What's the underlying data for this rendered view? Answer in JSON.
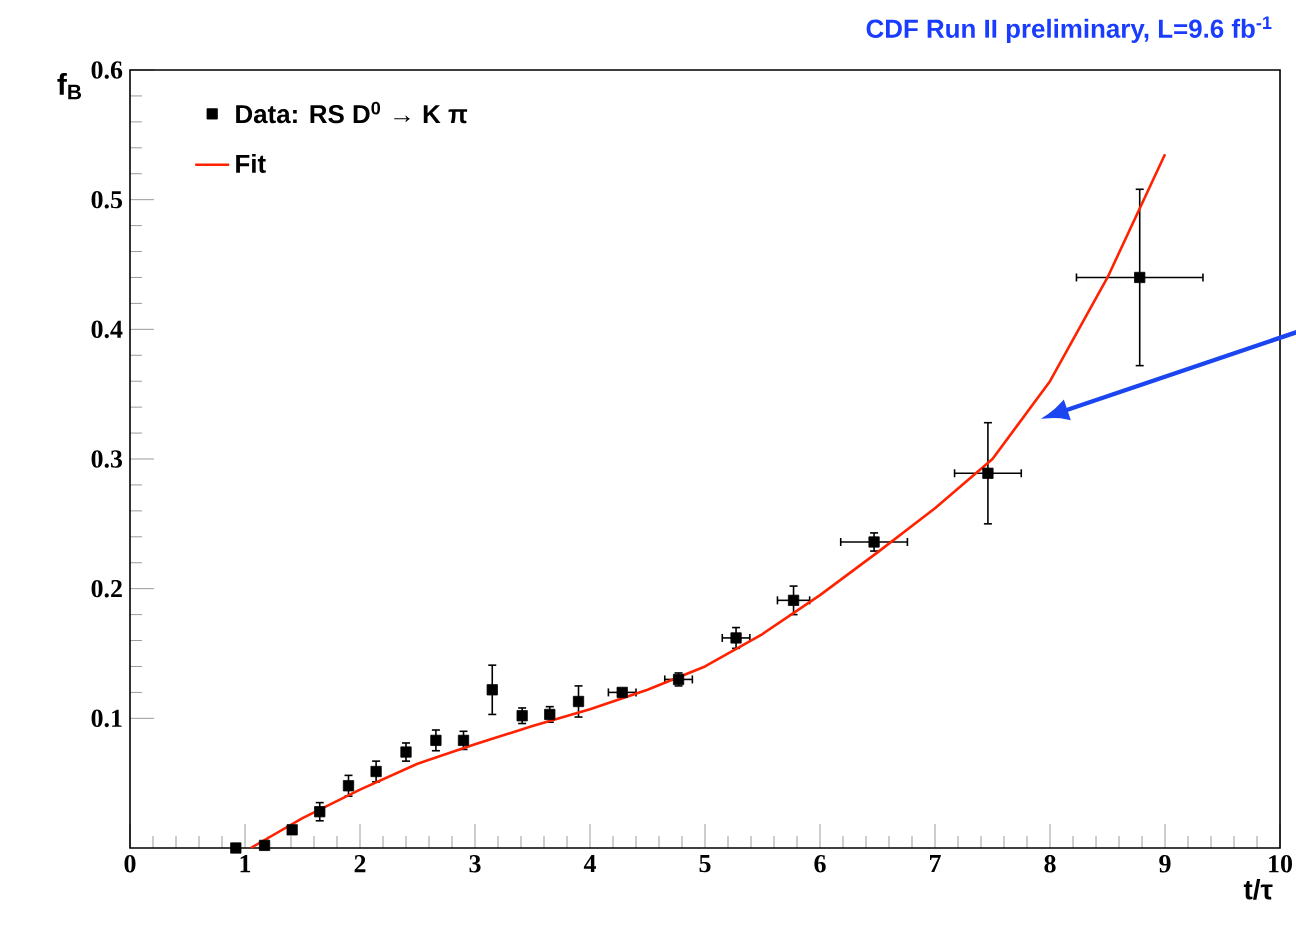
{
  "chart_data": {
    "type": "scatter",
    "title": "CDF Run II preliminary, L=9.6 fb$^{-1}$",
    "xlabel": "t/τ",
    "ylabel": "f$_{B}$",
    "xlim": [
      0,
      10
    ],
    "xticks": [
      0,
      1,
      2,
      3,
      4,
      5,
      6,
      7,
      8,
      9,
      10
    ],
    "ylim": [
      0,
      0.6
    ],
    "yticks": [
      0.1,
      0.2,
      0.3,
      0.4,
      0.5,
      0.6
    ],
    "legend": "top left",
    "grid": false,
    "series": [
      {
        "name": "Data: RS D$^{0}$ → K π",
        "type": "scatter",
        "marker": "square",
        "color": "#000000",
        "x": [
          0.92,
          1.17,
          1.41,
          1.65,
          1.9,
          2.14,
          2.4,
          2.66,
          2.9,
          3.15,
          3.41,
          3.65,
          3.9,
          4.28,
          4.77,
          5.27,
          5.77,
          6.47,
          7.46,
          8.78
        ],
        "values": [
          0.0,
          0.002,
          0.014,
          0.028,
          0.048,
          0.059,
          0.074,
          0.083,
          0.083,
          0.122,
          0.102,
          0.103,
          0.113,
          0.12,
          0.13,
          0.162,
          0.191,
          0.236,
          0.289,
          0.44
        ],
        "errors": [
          null,
          null,
          null,
          0.007,
          0.008,
          0.008,
          0.007,
          0.008,
          0.007,
          0.019,
          0.006,
          0.006,
          0.012,
          null,
          0.005,
          0.008,
          0.011,
          0.007,
          0.039,
          0.068
        ],
        "xerrors": [
          null,
          null,
          null,
          null,
          null,
          null,
          null,
          null,
          null,
          null,
          null,
          null,
          null,
          0.12,
          0.12,
          0.12,
          0.14,
          0.29,
          0.29,
          0.55
        ]
      },
      {
        "name": "Fit",
        "type": "line",
        "marker": "none",
        "line_style": "solid",
        "color": "#ff2200",
        "x": [
          1.05,
          1.5,
          2,
          2.5,
          3,
          3.5,
          4,
          4.5,
          5,
          5.5,
          6,
          6.5,
          7,
          7.5,
          8,
          8.5,
          9
        ],
        "values": [
          0.0,
          0.023,
          0.045,
          0.065,
          0.08,
          0.094,
          0.107,
          0.122,
          0.14,
          0.165,
          0.195,
          0.228,
          0.262,
          0.3,
          0.36,
          0.44,
          0.535
        ]
      }
    ]
  }
}
